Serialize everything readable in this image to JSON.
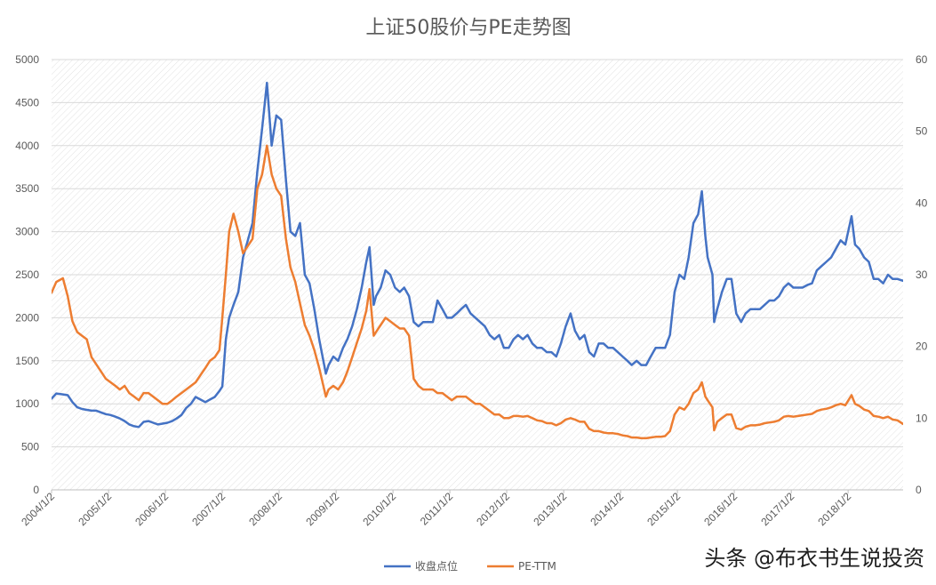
{
  "chart_data": {
    "type": "line",
    "title": "上证50股价与PE走势图",
    "xlim": [
      "2004-01-02",
      "2018-12-21"
    ],
    "xtick_labels": [
      "2004/1/2",
      "2005/1/2",
      "2006/1/2",
      "2007/1/2",
      "2008/1/2",
      "2009/1/2",
      "2010/1/2",
      "2011/1/2",
      "2012/1/2",
      "2013/1/2",
      "2014/1/2",
      "2015/1/2",
      "2016/1/2",
      "2017/1/2",
      "2018/1/2"
    ],
    "ylim": [
      0,
      5000
    ],
    "yticks": [
      0,
      500,
      1000,
      1500,
      2000,
      2500,
      3000,
      3500,
      4000,
      4500,
      5000
    ],
    "y2lim": [
      0,
      60
    ],
    "y2ticks": [
      0,
      10,
      20,
      30,
      40,
      50,
      60
    ],
    "grid": true,
    "legend": "bottom",
    "x": [
      "2004-01-02",
      "2004-02-01",
      "2004-03-15",
      "2004-04-15",
      "2004-05-15",
      "2004-06-15",
      "2004-07-15",
      "2004-08-15",
      "2004-09-15",
      "2004-10-15",
      "2004-11-15",
      "2004-12-15",
      "2005-01-15",
      "2005-02-15",
      "2005-03-15",
      "2005-04-15",
      "2005-05-15",
      "2005-06-15",
      "2005-07-15",
      "2005-08-15",
      "2005-09-15",
      "2005-10-15",
      "2005-11-15",
      "2005-12-15",
      "2006-01-15",
      "2006-02-15",
      "2006-03-15",
      "2006-04-15",
      "2006-05-15",
      "2006-06-15",
      "2006-07-15",
      "2006-08-15",
      "2006-09-15",
      "2006-10-15",
      "2006-11-15",
      "2006-12-15",
      "2007-01-02",
      "2007-01-25",
      "2007-02-15",
      "2007-03-15",
      "2007-04-15",
      "2007-05-15",
      "2007-06-15",
      "2007-07-15",
      "2007-08-15",
      "2007-09-15",
      "2007-10-16",
      "2007-11-15",
      "2007-12-15",
      "2008-01-15",
      "2008-02-15",
      "2008-03-15",
      "2008-04-15",
      "2008-05-15",
      "2008-06-15",
      "2008-07-15",
      "2008-08-15",
      "2008-09-15",
      "2008-10-28",
      "2008-11-15",
      "2008-12-15",
      "2009-01-15",
      "2009-02-15",
      "2009-03-15",
      "2009-04-15",
      "2009-05-15",
      "2009-06-15",
      "2009-07-15",
      "2009-08-04",
      "2009-08-31",
      "2009-09-15",
      "2009-10-15",
      "2009-11-15",
      "2009-12-15",
      "2010-01-15",
      "2010-02-15",
      "2010-03-15",
      "2010-04-15",
      "2010-05-15",
      "2010-06-15",
      "2010-07-15",
      "2010-08-15",
      "2010-09-15",
      "2010-10-15",
      "2010-11-15",
      "2010-12-15",
      "2011-01-15",
      "2011-02-15",
      "2011-03-15",
      "2011-04-15",
      "2011-05-15",
      "2011-06-15",
      "2011-07-15",
      "2011-08-15",
      "2011-09-15",
      "2011-10-15",
      "2011-11-15",
      "2011-12-15",
      "2012-01-15",
      "2012-02-15",
      "2012-03-15",
      "2012-04-15",
      "2012-05-15",
      "2012-06-15",
      "2012-07-15",
      "2012-08-15",
      "2012-09-15",
      "2012-10-15",
      "2012-11-15",
      "2012-12-15",
      "2013-01-15",
      "2013-02-15",
      "2013-03-15",
      "2013-04-15",
      "2013-05-15",
      "2013-06-15",
      "2013-07-15",
      "2013-08-15",
      "2013-09-15",
      "2013-10-15",
      "2013-11-15",
      "2013-12-15",
      "2014-01-15",
      "2014-02-15",
      "2014-03-15",
      "2014-04-15",
      "2014-05-15",
      "2014-06-15",
      "2014-07-15",
      "2014-08-15",
      "2014-09-15",
      "2014-10-15",
      "2014-11-15",
      "2014-12-15",
      "2015-01-15",
      "2015-02-15",
      "2015-03-15",
      "2015-04-15",
      "2015-05-15",
      "2015-06-08",
      "2015-06-30",
      "2015-07-15",
      "2015-08-15",
      "2015-08-26",
      "2015-09-15",
      "2015-10-15",
      "2015-11-15",
      "2015-12-15",
      "2016-01-15",
      "2016-02-15",
      "2016-03-15",
      "2016-04-15",
      "2016-05-15",
      "2016-06-15",
      "2016-07-15",
      "2016-08-15",
      "2016-09-15",
      "2016-10-15",
      "2016-11-15",
      "2016-12-15",
      "2017-01-15",
      "2017-02-15",
      "2017-03-15",
      "2017-04-15",
      "2017-05-15",
      "2017-06-15",
      "2017-07-15",
      "2017-08-15",
      "2017-09-15",
      "2017-10-15",
      "2017-11-15",
      "2017-12-15",
      "2018-01-24",
      "2018-02-15",
      "2018-03-15",
      "2018-04-15",
      "2018-05-15",
      "2018-06-15",
      "2018-07-15",
      "2018-08-15",
      "2018-09-15",
      "2018-10-15",
      "2018-11-15",
      "2018-12-20"
    ],
    "series": [
      {
        "name": "收盘点位",
        "axis": "left",
        "color": "#4472C4",
        "values": [
          1060,
          1120,
          1110,
          1100,
          1020,
          960,
          940,
          930,
          920,
          920,
          900,
          880,
          870,
          850,
          830,
          800,
          760,
          740,
          730,
          790,
          800,
          780,
          760,
          770,
          780,
          800,
          830,
          870,
          950,
          1000,
          1080,
          1050,
          1020,
          1050,
          1080,
          1150,
          1200,
          1750,
          2000,
          2150,
          2300,
          2700,
          2900,
          3100,
          3700,
          4200,
          4730,
          4000,
          4350,
          4300,
          3600,
          3000,
          2950,
          3100,
          2500,
          2400,
          2100,
          1750,
          1350,
          1450,
          1550,
          1500,
          1650,
          1750,
          1900,
          2100,
          2350,
          2650,
          2820,
          2150,
          2250,
          2350,
          2550,
          2500,
          2350,
          2300,
          2350,
          2250,
          1950,
          1900,
          1950,
          1950,
          1950,
          2200,
          2100,
          2000,
          2000,
          2050,
          2100,
          2150,
          2050,
          2000,
          1950,
          1900,
          1800,
          1750,
          1800,
          1650,
          1650,
          1750,
          1800,
          1750,
          1800,
          1700,
          1650,
          1650,
          1600,
          1600,
          1550,
          1700,
          1900,
          2050,
          1850,
          1750,
          1800,
          1600,
          1550,
          1700,
          1700,
          1650,
          1650,
          1600,
          1550,
          1500,
          1450,
          1500,
          1450,
          1450,
          1550,
          1650,
          1650,
          1650,
          1800,
          2300,
          2500,
          2450,
          2700,
          3100,
          3200,
          3470,
          2950,
          2700,
          2500,
          1950,
          2100,
          2300,
          2450,
          2450,
          2050,
          1950,
          2050,
          2100,
          2100,
          2100,
          2150,
          2200,
          2200,
          2250,
          2350,
          2400,
          2350,
          2350,
          2350,
          2380,
          2400,
          2550,
          2600,
          2650,
          2700,
          2800,
          2900,
          2850,
          3180,
          2850,
          2800,
          2700,
          2650,
          2450,
          2450,
          2400,
          2500,
          2450,
          2450,
          2430
        ]
      },
      {
        "name": "PE-TTM",
        "axis": "right",
        "color": "#ED7D31",
        "values": [
          27.5,
          29,
          29.5,
          27,
          23.5,
          22,
          21.5,
          21,
          18.5,
          17.5,
          16.5,
          15.5,
          15,
          14.5,
          14,
          14.5,
          13.5,
          13,
          12.5,
          13.5,
          13.5,
          13,
          12.5,
          12,
          12,
          12.5,
          13,
          13.5,
          14,
          14.5,
          15,
          16,
          17,
          18,
          18.5,
          19.5,
          24,
          30,
          36,
          38.5,
          36,
          33,
          34,
          35,
          42,
          44,
          48,
          44,
          42,
          41,
          35,
          31,
          29,
          26,
          23,
          21.5,
          19.5,
          17,
          13,
          14,
          14.5,
          14,
          15,
          16.5,
          18.5,
          20.5,
          22.5,
          25,
          28,
          21.5,
          22,
          23,
          24,
          23.5,
          23,
          22.5,
          22.5,
          21.5,
          15.5,
          14.5,
          14,
          14,
          14,
          13.5,
          13.5,
          13,
          12.5,
          13,
          13,
          13,
          12.5,
          12,
          12,
          11.5,
          11,
          10.5,
          10.5,
          10,
          10,
          10.3,
          10.3,
          10.2,
          10.3,
          10,
          9.7,
          9.6,
          9.3,
          9.3,
          9,
          9.3,
          9.8,
          10,
          9.8,
          9.5,
          9.5,
          8.5,
          8.2,
          8.2,
          8,
          7.9,
          7.9,
          7.8,
          7.6,
          7.5,
          7.3,
          7.3,
          7.2,
          7.2,
          7.3,
          7.4,
          7.4,
          7.5,
          8.2,
          10.5,
          11.5,
          11.2,
          12,
          13.5,
          14,
          15,
          13,
          12.5,
          11.5,
          8.3,
          9.5,
          10,
          10.5,
          10.5,
          8.6,
          8.4,
          8.8,
          9,
          9,
          9.1,
          9.3,
          9.4,
          9.5,
          9.7,
          10.2,
          10.3,
          10.2,
          10.3,
          10.4,
          10.5,
          10.6,
          11,
          11.2,
          11.3,
          11.5,
          11.8,
          12,
          11.8,
          13.2,
          12,
          11.7,
          11.2,
          11,
          10.3,
          10.2,
          10,
          10.2,
          9.8,
          9.7,
          9.2
        ]
      }
    ]
  },
  "watermark": "头条 @布衣书生说投资"
}
